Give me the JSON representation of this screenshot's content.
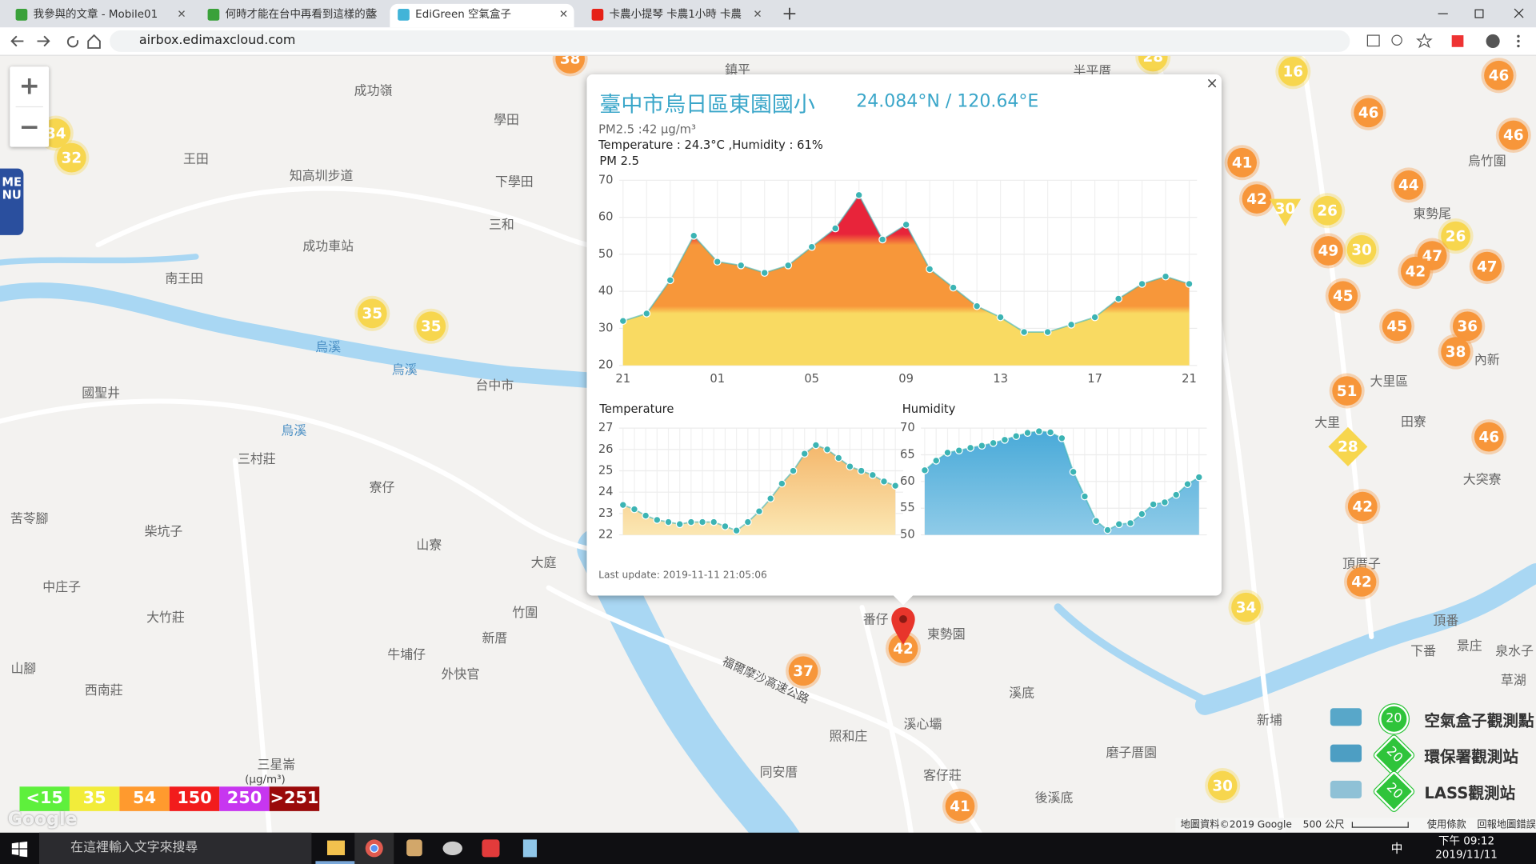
{
  "browser": {
    "tabs": [
      "我參與的文章 - Mobile01",
      "何時才能在台中再看到這樣的藍",
      "EdiGreen 空氣盒子",
      "卡農小提琴 卡農1小時 卡農"
    ],
    "url": "airbox.edimaxcloud.com"
  },
  "map": {
    "menu": "MENU",
    "markers": [
      38,
      32,
      34,
      35,
      35,
      37,
      42,
      41,
      28,
      16,
      46,
      46,
      46,
      41,
      42,
      30,
      26,
      44,
      26,
      49,
      30,
      47,
      42,
      47,
      45,
      45,
      36,
      38,
      51,
      46,
      28,
      42,
      42,
      34,
      30
    ],
    "marker_colors": [
      "#3fd43f",
      "#f7d64e",
      "#f7963a"
    ],
    "places": [
      "成功嶺",
      "學田",
      "王田",
      "知高圳步道",
      "下學田",
      "三和",
      "成功車站",
      "南王田",
      "國聖井",
      "三村莊",
      "寮仔",
      "苦苓腳",
      "柴坑子",
      "山寮",
      "大庭",
      "中庄子",
      "大竹莊",
      "竹圍",
      "牛埔仔",
      "新厝",
      "外快官",
      "西南莊",
      "番仔",
      "東勢園",
      "照和庄",
      "溪心壩",
      "溪底",
      "同安厝",
      "客仔莊",
      "後溪底",
      "磨子厝園",
      "新埔",
      "頂厝子",
      "大里區",
      "東勢尾",
      "烏竹圍",
      "內新",
      "大突寮",
      "頂番",
      "下番",
      "景庄",
      "泉水子",
      "草湖",
      "田寮",
      "大里",
      "鎮平",
      "半平厝",
      "山腳",
      "三星崙",
      "烏溪",
      "烏溪",
      "烏溪",
      "台中市"
    ],
    "road": "福爾摩沙高速公路",
    "legend": {
      "unit": "(μg/m³)",
      "levels": [
        {
          "value": 15,
          "label": "<15"
        },
        35,
        54,
        150,
        250,
        {
          "value": 251,
          "label": ">251"
        }
      ],
      "colors": [
        "#5ef03c",
        "#f2ec3a",
        "#ff9a2e",
        "#f21c1c",
        "#c736f0",
        "#9a0a0a"
      ]
    },
    "stations": [
      {
        "name": "空氣盒子觀測點",
        "value": 20
      },
      {
        "name": "環保署觀測站",
        "value": 20
      },
      {
        "name": "LASS觀測站",
        "value": 20
      }
    ],
    "footer": {
      "data": "地圖資料©2019 Google",
      "scale": "500 公尺",
      "terms": "使用條款",
      "report": "回報地圖錯誤",
      "logo": "Google"
    }
  },
  "popup": {
    "title": "臺中市烏日區東園國小",
    "coords": "24.084°N / 120.64°E",
    "pm": "PM2.5 :42 μg/m³",
    "weather": "Temperature : 24.3°C ,Humidity : 61%",
    "update": "Last update: 2019-11-11 21:05:06",
    "charts": [
      {
        "type": "area",
        "title": "PM 2.5",
        "categories": [
          "21",
          null,
          null,
          null,
          "01",
          null,
          null,
          null,
          "05",
          null,
          null,
          null,
          "09",
          null,
          null,
          null,
          "13",
          null,
          null,
          null,
          "17",
          null,
          null,
          null,
          "21"
        ],
        "values": [
          32,
          34,
          43,
          55,
          48,
          47,
          45,
          47,
          52,
          57,
          66,
          54,
          58,
          46,
          41,
          36,
          33,
          29,
          29,
          31,
          33,
          38,
          42,
          44,
          42
        ],
        "ylim": [
          20,
          70
        ],
        "yticks": [
          20,
          30,
          40,
          50,
          60,
          70
        ],
        "colors": [
          "#e8243a",
          "#f7973a",
          "#f9da62"
        ],
        "line_color": "#3cb4b4"
      },
      {
        "type": "area",
        "title": "Temperature",
        "values": [
          23.4,
          23.2,
          22.9,
          22.7,
          22.6,
          22.5,
          22.6,
          22.6,
          22.6,
          22.4,
          22.2,
          22.6,
          23.1,
          23.7,
          24.4,
          25.0,
          25.8,
          26.2,
          26.0,
          25.6,
          25.2,
          25.0,
          24.8,
          24.5,
          24.3
        ],
        "ylim": [
          22,
          27
        ],
        "yticks": [
          22,
          23,
          24,
          25,
          26,
          27
        ],
        "colors": [
          "#f3ae5e",
          "#fbe7b3"
        ],
        "line_color": "#3cb4b4"
      },
      {
        "type": "area",
        "title": "Humidity",
        "values": [
          62.1,
          63.9,
          65.4,
          65.8,
          66.3,
          66.7,
          67.2,
          67.8,
          68.5,
          69.1,
          69.4,
          69.2,
          68.1,
          61.8,
          57.2,
          52.6,
          50.9,
          52.0,
          52.2,
          53.9,
          55.7,
          56.1,
          57.5,
          59.5,
          60.8
        ],
        "ylim": [
          50,
          70
        ],
        "yticks": [
          50,
          55,
          60,
          65,
          70
        ],
        "colors": [
          "#47a9d8",
          "#8fcbe8"
        ],
        "line_color": "#3cb4b4"
      }
    ]
  },
  "taskbar": {
    "search": "在這裡輸入文字來搜尋",
    "ime": "中",
    "time": "下午 09:12",
    "date": "2019/11/11"
  }
}
